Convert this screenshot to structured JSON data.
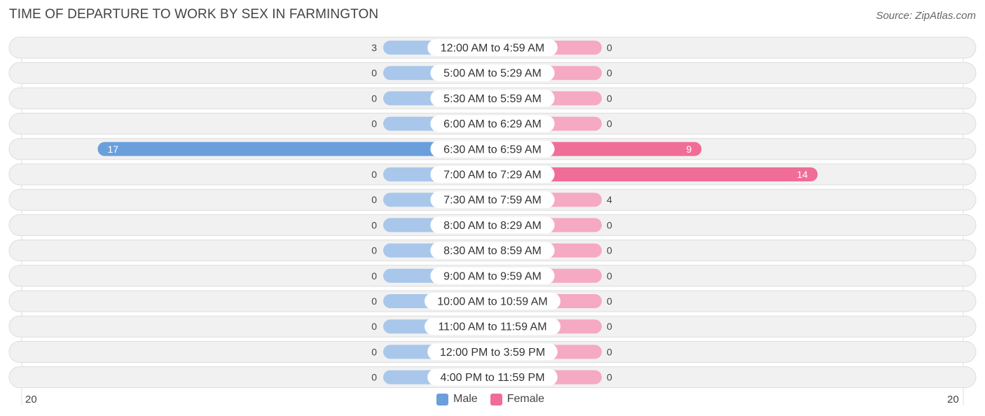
{
  "header": {
    "title": "TIME OF DEPARTURE TO WORK BY SEX IN FARMINGTON",
    "source": "Source: ZipAtlas.com"
  },
  "axis": {
    "left_label": "20",
    "right_label": "20"
  },
  "legend": {
    "male_label": "Male",
    "female_label": "Female"
  },
  "colors": {
    "male_light": "#a9c7ea",
    "male_strong": "#6a9fdb",
    "female_light": "#f5a9c3",
    "female_strong": "#f06d97",
    "track": "#f1f1f1",
    "track_border": "#dddddd"
  },
  "chart_data": {
    "type": "bar",
    "orientation": "horizontal-diverging",
    "xlim": [
      -20,
      20
    ],
    "categories": [
      "12:00 AM to 4:59 AM",
      "5:00 AM to 5:29 AM",
      "5:30 AM to 5:59 AM",
      "6:00 AM to 6:29 AM",
      "6:30 AM to 6:59 AM",
      "7:00 AM to 7:29 AM",
      "7:30 AM to 7:59 AM",
      "8:00 AM to 8:29 AM",
      "8:30 AM to 8:59 AM",
      "9:00 AM to 9:59 AM",
      "10:00 AM to 10:59 AM",
      "11:00 AM to 11:59 AM",
      "12:00 PM to 3:59 PM",
      "4:00 PM to 11:59 PM"
    ],
    "series": [
      {
        "name": "Male",
        "values": [
          3,
          0,
          0,
          0,
          17,
          0,
          0,
          0,
          0,
          0,
          0,
          0,
          0,
          0
        ]
      },
      {
        "name": "Female",
        "values": [
          0,
          0,
          0,
          0,
          9,
          14,
          4,
          0,
          0,
          0,
          0,
          0,
          0,
          0
        ]
      }
    ],
    "legend": "bottom-center",
    "grid": false
  }
}
